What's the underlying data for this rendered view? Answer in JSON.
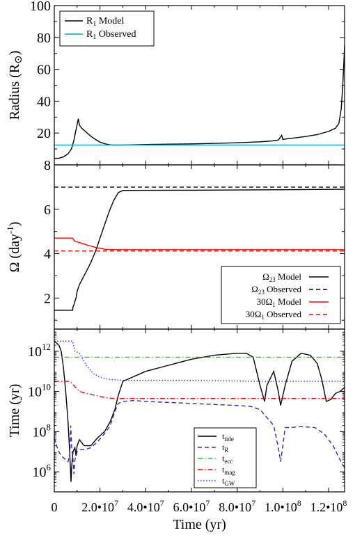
{
  "chart_data": [
    {
      "type": "line",
      "ylabel": "Radius (R",
      "ylabel_symbol": "⊙",
      "ylabel_close": ")",
      "xlim": [
        0,
        127000000
      ],
      "ylim": [
        0,
        100
      ],
      "yticks": [
        20,
        40,
        60,
        80,
        100
      ],
      "grid": false,
      "legend_position": "top-left",
      "series": [
        {
          "name": "R1 Model",
          "label_main": "R",
          "label_sub": "1",
          "label_rest": " Model",
          "color": "#000000",
          "dash": "solid",
          "points": [
            [
              0,
              4
            ],
            [
              2000000,
              4.2
            ],
            [
              4000000,
              5
            ],
            [
              6000000,
              7
            ],
            [
              7500000,
              10
            ],
            [
              8500000,
              15
            ],
            [
              9500000,
              22
            ],
            [
              10500000,
              29
            ],
            [
              11000000,
              25
            ],
            [
              12000000,
              23
            ],
            [
              14000000,
              20.5
            ],
            [
              16000000,
              18
            ],
            [
              18000000,
              16
            ],
            [
              20000000,
              14.3
            ],
            [
              22000000,
              13.3
            ],
            [
              24000000,
              12.7
            ],
            [
              26000000,
              12.4
            ],
            [
              30000000,
              12.5
            ],
            [
              40000000,
              12.8
            ],
            [
              50000000,
              13
            ],
            [
              60000000,
              13.2
            ],
            [
              70000000,
              13.5
            ],
            [
              80000000,
              13.9
            ],
            [
              90000000,
              14.5
            ],
            [
              95000000,
              15
            ],
            [
              98000000,
              15.6
            ],
            [
              99500000,
              18.5
            ],
            [
              100000000,
              16
            ],
            [
              102000000,
              16.4
            ],
            [
              105000000,
              16.9
            ],
            [
              110000000,
              17.8
            ],
            [
              115000000,
              19
            ],
            [
              120000000,
              21
            ],
            [
              123000000,
              23
            ],
            [
              124500000,
              26
            ],
            [
              125500000,
              35
            ],
            [
              126200000,
              50
            ],
            [
              126700000,
              65
            ],
            [
              127000000,
              75
            ]
          ]
        },
        {
          "name": "R1 Observed",
          "label_main": "R",
          "label_sub": "1",
          "label_rest": " Observed",
          "color": "#00a0dc",
          "dash": "solid",
          "points": [
            [
              0,
              12.5
            ],
            [
              127000000,
              12.5
            ]
          ]
        }
      ]
    },
    {
      "type": "line",
      "ylabel": "Ω (day",
      "ylabel_sup": "-1",
      "ylabel_close": ")",
      "xlim": [
        0,
        127000000
      ],
      "ylim": [
        0.6,
        8
      ],
      "yticks": [
        2,
        4,
        6,
        8
      ],
      "grid": false,
      "legend_position": "bottom-right",
      "series": [
        {
          "name": "Ω23 Model",
          "label_main": "Ω",
          "label_sub": "23",
          "label_rest": " Model",
          "color": "#000000",
          "dash": "solid",
          "points": [
            [
              0,
              1.45
            ],
            [
              8000000,
              1.45
            ],
            [
              8200000,
              1.6
            ],
            [
              8800000,
              1.75
            ],
            [
              9000000,
              1.85
            ],
            [
              9500000,
              2.0
            ],
            [
              10000000,
              2.3
            ],
            [
              11000000,
              2.6
            ],
            [
              12000000,
              2.8
            ],
            [
              14000000,
              3.2
            ],
            [
              16000000,
              3.6
            ],
            [
              18000000,
              4.1
            ],
            [
              20000000,
              4.7
            ],
            [
              22000000,
              5.3
            ],
            [
              24000000,
              5.9
            ],
            [
              26000000,
              6.4
            ],
            [
              28000000,
              6.75
            ],
            [
              30000000,
              6.85
            ],
            [
              60000000,
              6.86
            ],
            [
              100000000,
              6.88
            ],
            [
              127000000,
              6.9
            ]
          ]
        },
        {
          "name": "Ω23 Observed",
          "label_main": "Ω",
          "label_sub": "23",
          "label_rest": " Observed",
          "color": "#000000",
          "dash": "dashed",
          "points": [
            [
              0,
              7.0
            ],
            [
              127000000,
              7.0
            ]
          ]
        },
        {
          "name": "30Ω1 Model",
          "label_main": "30Ω",
          "label_sub": "1",
          "label_rest": " Model",
          "color": "#ff0000",
          "dash": "solid",
          "points": [
            [
              0,
              4.7
            ],
            [
              8000000,
              4.7
            ],
            [
              9000000,
              4.55
            ],
            [
              11000000,
              4.5
            ],
            [
              14000000,
              4.4
            ],
            [
              18000000,
              4.28
            ],
            [
              22000000,
              4.2
            ],
            [
              26000000,
              4.18
            ],
            [
              127000000,
              4.18
            ]
          ]
        },
        {
          "name": "30Ω1 Observed",
          "label_main": "30Ω",
          "label_sub": "1",
          "label_rest": " Observed",
          "color": "#ff0000",
          "dash": "dashed",
          "points": [
            [
              0,
              4.12
            ],
            [
              127000000,
              4.12
            ]
          ]
        }
      ]
    },
    {
      "type": "line",
      "xlabel": "Time (yr)",
      "ylabel": "Time (yr)",
      "log_y": true,
      "xlim": [
        0,
        127000000
      ],
      "ylim": [
        5,
        13.1
      ],
      "yticks": [
        {
          "value": 6,
          "base": "10",
          "exp": "6"
        },
        {
          "value": 8,
          "base": "10",
          "exp": "8"
        },
        {
          "value": 10,
          "base": "10",
          "exp": "10"
        },
        {
          "value": 12,
          "base": "10",
          "exp": "12"
        }
      ],
      "xticks": [
        {
          "value": 0,
          "label": "0"
        },
        {
          "value": 20000000,
          "label": "2.0•10",
          "exp": "7"
        },
        {
          "value": 40000000,
          "label": "4.0•10",
          "exp": "7"
        },
        {
          "value": 60000000,
          "label": "6.0•10",
          "exp": "7"
        },
        {
          "value": 80000000,
          "label": "8.0•10",
          "exp": "7"
        },
        {
          "value": 100000000,
          "label": "1.0•10",
          "exp": "8"
        },
        {
          "value": 120000000,
          "label": "1.2•10",
          "exp": "8"
        }
      ],
      "grid": false,
      "legend_position": "bottom-center",
      "series": [
        {
          "name": "t_tide",
          "label_main": "t",
          "label_sub": "tide",
          "color": "#000000",
          "dash": "solid",
          "points": [
            [
              0,
              12.5
            ],
            [
              2000000,
              12.3
            ],
            [
              3000000,
              12
            ],
            [
              4000000,
              11.2
            ],
            [
              5000000,
              10
            ],
            [
              6000000,
              8.5
            ],
            [
              6500000,
              7.5
            ],
            [
              7000000,
              6.3
            ],
            [
              7300000,
              5.5
            ],
            [
              7600000,
              6.3
            ],
            [
              8200000,
              7.0
            ],
            [
              9000000,
              7.2
            ],
            [
              9500000,
              6.8
            ],
            [
              10000000,
              7.3
            ],
            [
              11000000,
              7.6
            ],
            [
              13000000,
              7.3
            ],
            [
              16000000,
              7.3
            ],
            [
              19000000,
              7.7
            ],
            [
              22000000,
              8.0
            ],
            [
              24500000,
              8.5
            ],
            [
              26500000,
              9.1
            ],
            [
              28000000,
              9.8
            ],
            [
              30000000,
              10.5
            ],
            [
              40000000,
              11.0
            ],
            [
              50000000,
              11.3
            ],
            [
              60000000,
              11.6
            ],
            [
              70000000,
              11.8
            ],
            [
              80000000,
              11.9
            ],
            [
              84000000,
              11.9
            ],
            [
              87000000,
              11.7
            ],
            [
              90000000,
              10.3
            ],
            [
              92000000,
              9.5
            ],
            [
              93000000,
              10.3
            ],
            [
              96000000,
              11.0
            ],
            [
              98000000,
              10.0
            ],
            [
              99000000,
              9.3
            ],
            [
              101000000,
              10.3
            ],
            [
              104000000,
              11.5
            ],
            [
              108000000,
              11.9
            ],
            [
              112000000,
              11.8
            ],
            [
              115000000,
              11.4
            ],
            [
              117000000,
              10.6
            ],
            [
              119000000,
              9.5
            ],
            [
              121000000,
              9.6
            ],
            [
              123000000,
              9.9
            ],
            [
              125000000,
              10
            ],
            [
              127000000,
              10.2
            ]
          ]
        },
        {
          "name": "t_R",
          "label_main": "t",
          "label_sub": "R",
          "color": "#4020c0",
          "dash": "dashed",
          "points": [
            [
              0,
              7.7
            ],
            [
              1000000,
              7.3
            ],
            [
              2000000,
              7.0
            ],
            [
              3000000,
              6.8
            ],
            [
              4000000,
              6.7
            ],
            [
              5000000,
              6.6
            ],
            [
              6000000,
              6.5
            ],
            [
              6800000,
              6.9
            ],
            [
              7200000,
              8.3
            ],
            [
              7600000,
              7.2
            ],
            [
              8200000,
              6.6
            ],
            [
              8600000,
              5.9
            ],
            [
              9000000,
              6.6
            ],
            [
              10000000,
              7.0
            ],
            [
              11500000,
              7.1
            ],
            [
              13500000,
              7.1
            ],
            [
              16000000,
              7.2
            ],
            [
              19000000,
              7.5
            ],
            [
              22000000,
              7.9
            ],
            [
              24500000,
              8.3
            ],
            [
              26500000,
              9.0
            ],
            [
              28000000,
              9.4
            ],
            [
              30000000,
              9.5
            ],
            [
              35000000,
              9.55
            ],
            [
              40000000,
              9.5
            ],
            [
              50000000,
              9.45
            ],
            [
              60000000,
              9.4
            ],
            [
              70000000,
              9.35
            ],
            [
              80000000,
              9.3
            ],
            [
              86000000,
              9.25
            ],
            [
              90000000,
              9.1
            ],
            [
              93000000,
              8.7
            ],
            [
              96000000,
              8.3
            ],
            [
              98000000,
              7.2
            ],
            [
              99000000,
              6.5
            ],
            [
              100000000,
              7.3
            ],
            [
              101000000,
              8.2
            ],
            [
              103000000,
              8.2
            ],
            [
              108000000,
              8.25
            ],
            [
              114000000,
              8.2
            ],
            [
              118000000,
              7.9
            ],
            [
              122000000,
              7.3
            ],
            [
              125000000,
              6.6
            ],
            [
              127000000,
              6.2
            ]
          ]
        },
        {
          "name": "t_ecc",
          "label_main": "t",
          "label_sub": "ecc",
          "color": "#22cc22",
          "dash": "dashdot",
          "points": [
            [
              0,
              11.7
            ],
            [
              127000000,
              11.7
            ]
          ]
        },
        {
          "name": "t_mag",
          "label_main": "t",
          "label_sub": "mag",
          "color": "#ff0000",
          "dash": "dashdot",
          "points": [
            [
              0,
              10.5
            ],
            [
              7000000,
              10.5
            ],
            [
              8500000,
              10.3
            ],
            [
              11000000,
              10.0
            ],
            [
              14000000,
              9.9
            ],
            [
              18000000,
              9.8
            ],
            [
              22000000,
              9.7
            ],
            [
              26000000,
              9.65
            ],
            [
              127000000,
              9.65
            ]
          ]
        },
        {
          "name": "t_GW",
          "label_main": "t",
          "label_sub": "GW",
          "color": "#3030ff",
          "dash": "dotted",
          "points": [
            [
              0,
              12.5
            ],
            [
              8000000,
              12.5
            ],
            [
              9000000,
              12.0
            ],
            [
              11000000,
              11.9
            ],
            [
              14000000,
              11.3
            ],
            [
              17000000,
              10.9
            ],
            [
              20000000,
              10.7
            ],
            [
              24000000,
              10.6
            ],
            [
              30000000,
              10.55
            ],
            [
              60000000,
              10.55
            ],
            [
              90000000,
              10.5
            ],
            [
              127000000,
              10.5
            ]
          ]
        }
      ]
    }
  ]
}
